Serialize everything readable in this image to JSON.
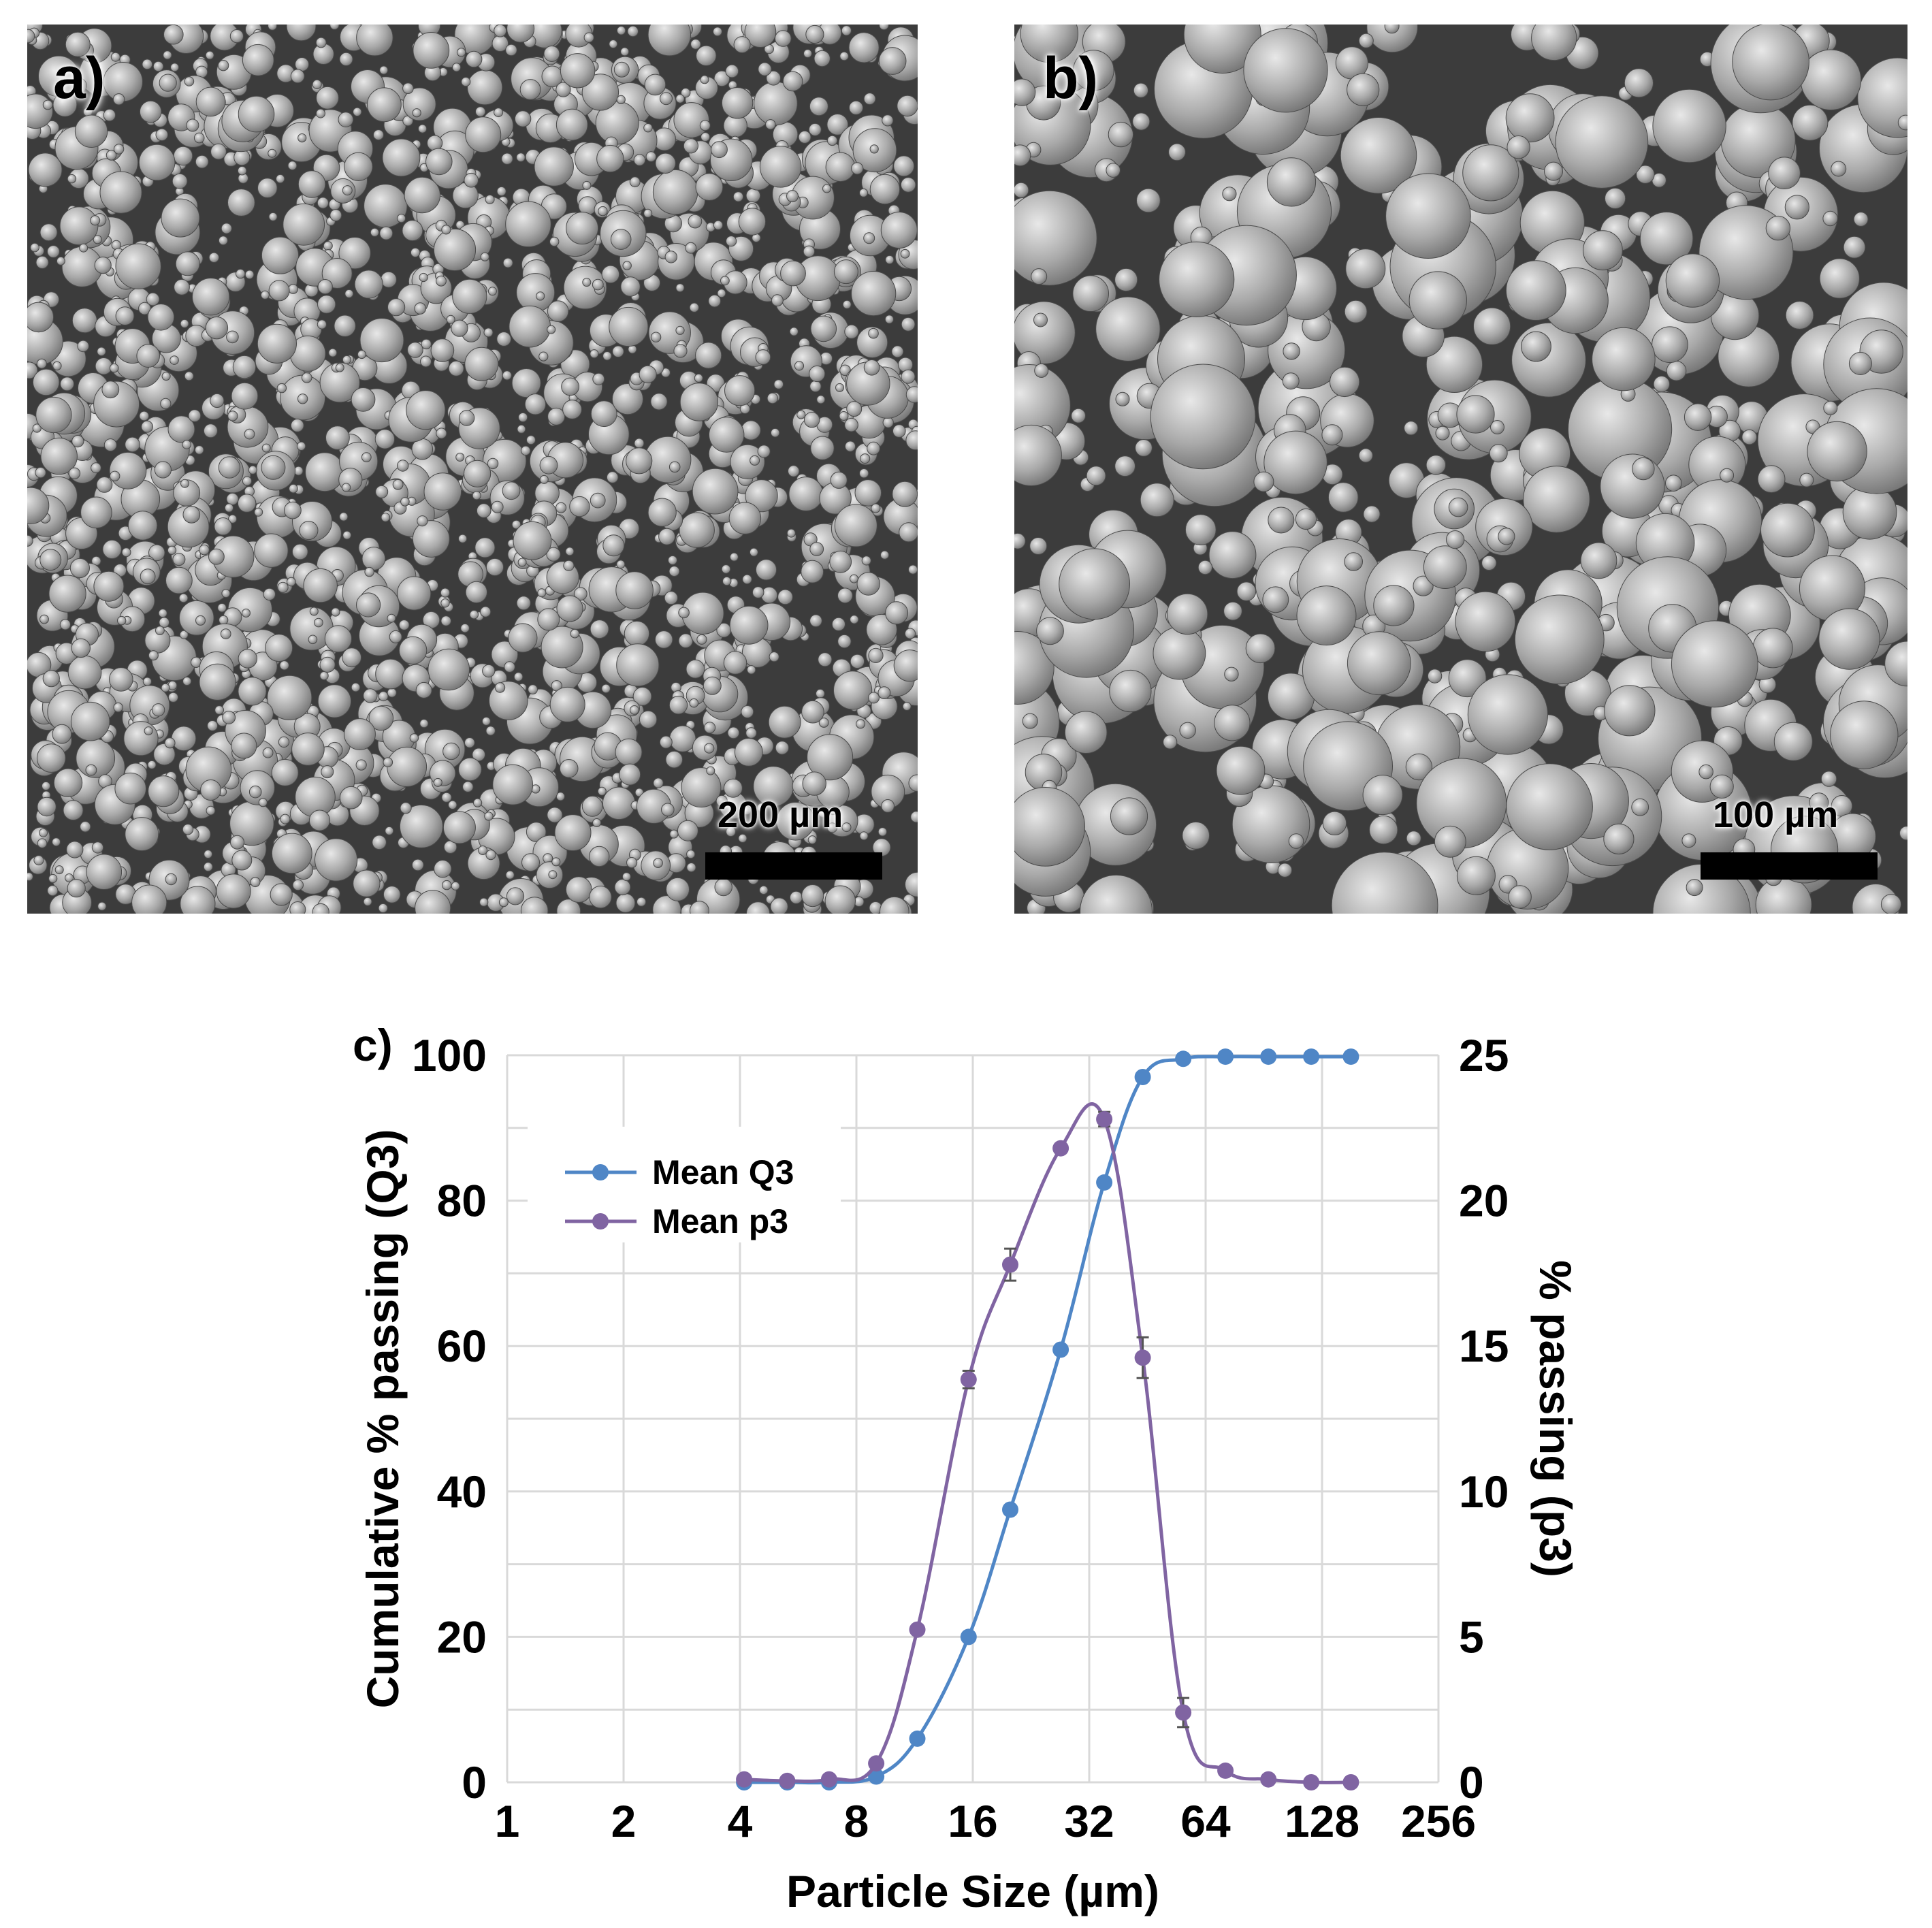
{
  "panels": {
    "a": {
      "label": "a)",
      "scale_text": "200 µm"
    },
    "b": {
      "label": "b)",
      "scale_text": "100 µm"
    }
  },
  "colors": {
    "q3": "#4f86c6",
    "p3": "#8064a2",
    "grid": "#d9d9d9"
  },
  "chart_data": {
    "type": "line",
    "panel_label": "c)",
    "xlabel": "Particle Size (µm)",
    "ylabel_left": "Cumulative % passing (Q3)",
    "ylabel_right": "% passing (p3)",
    "x_scale": "log2",
    "xlim": [
      1,
      256
    ],
    "x_ticks": [
      "1",
      "2",
      "4",
      "8",
      "16",
      "32",
      "64",
      "128",
      "256"
    ],
    "ylim_left": [
      0,
      100
    ],
    "y_ticks_left": [
      "0",
      "20",
      "40",
      "60",
      "80",
      "100"
    ],
    "ylim_right": [
      0,
      25
    ],
    "y_ticks_right": [
      "0",
      "5",
      "10",
      "15",
      "20",
      "25"
    ],
    "legend": {
      "position": "top-left",
      "entries": [
        "Mean Q3",
        "Mean p3"
      ]
    },
    "series": [
      {
        "name": "Mean Q3",
        "axis": "left",
        "x": [
          4.1,
          5.3,
          6.8,
          9.0,
          11.5,
          15.6,
          20.0,
          27.0,
          35.0,
          44.0,
          56.0,
          72.0,
          93.0,
          120.0,
          152.0
        ],
        "y": [
          0,
          0,
          0,
          0.8,
          6,
          20,
          37.5,
          59.5,
          82.5,
          97,
          99.5,
          99.8,
          99.8,
          99.8,
          99.8
        ]
      },
      {
        "name": "Mean p3",
        "axis": "right",
        "x": [
          4.1,
          5.3,
          6.8,
          9.0,
          11.5,
          15.6,
          20.0,
          27.0,
          35.0,
          44.0,
          56.0,
          72.0,
          93.0,
          120.0,
          152.0
        ],
        "y": [
          0.1,
          0.05,
          0.1,
          0.65,
          5.25,
          13.85,
          17.8,
          21.8,
          22.8,
          14.6,
          2.4,
          0.4,
          0.1,
          0,
          0
        ],
        "error": [
          0,
          0,
          0,
          0,
          0,
          0.3,
          0.55,
          0,
          0.25,
          0.7,
          0.5,
          0,
          0,
          0,
          0
        ]
      }
    ]
  }
}
